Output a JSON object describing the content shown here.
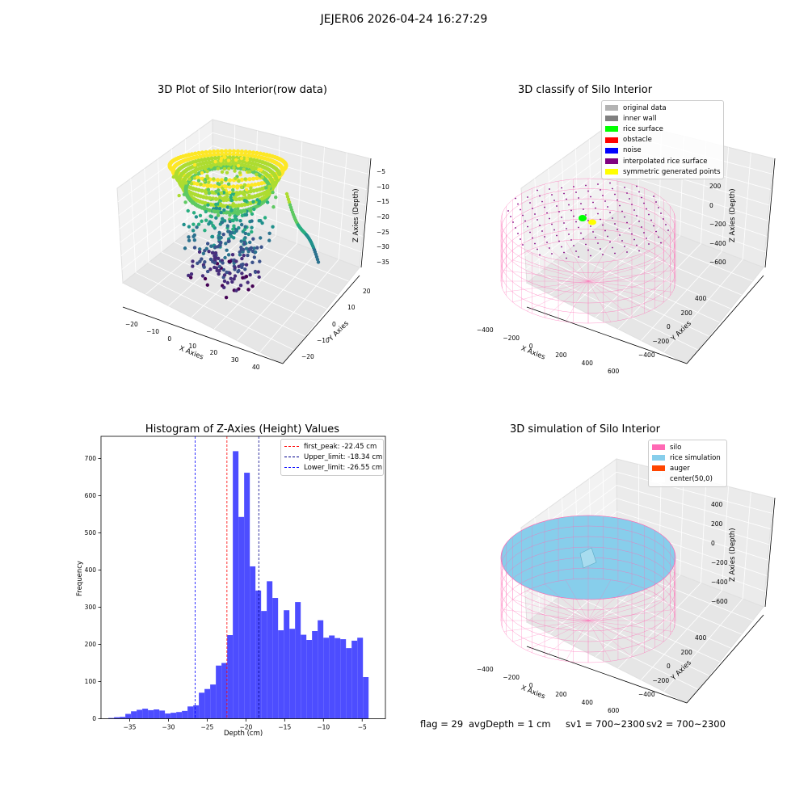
{
  "suptitle": "JEJER06 2026-04-24 16:27:29",
  "chart_data": [
    {
      "type": "scatter",
      "title": "3D Plot of Silo Interior(row data)",
      "xlabel": "X Axies",
      "ylabel": "Y Axies",
      "zlabel": "Z Axies (Depth)",
      "x_ticks": [
        "−20",
        "−10",
        "0",
        "10",
        "20",
        "30",
        "40"
      ],
      "y_ticks": [
        "−20",
        "−10",
        "0",
        "10",
        "20"
      ],
      "z_ticks": [
        "−5",
        "−10",
        "−15",
        "−20",
        "−25",
        "−30",
        "−35"
      ],
      "colormap": "viridis"
    },
    {
      "type": "scatter",
      "title": "3D classify of Silo Interior",
      "xlabel": "X Axies",
      "ylabel": "Y Axies",
      "zlabel": "Z Axies (Depth)",
      "x_ticks": [
        "−400",
        "−200",
        "0",
        "200",
        "400",
        "600"
      ],
      "y_ticks": [
        "−400",
        "−200",
        "0",
        "200",
        "400"
      ],
      "z_ticks": [
        "200",
        "0",
        "−200",
        "−400",
        "−600"
      ],
      "legend": [
        {
          "label": "original data",
          "color": "#b3b3b3"
        },
        {
          "label": "inner wall",
          "color": "#808080"
        },
        {
          "label": "rice surface",
          "color": "#00ff00"
        },
        {
          "label": "obstacle",
          "color": "#ff0000"
        },
        {
          "label": "noise",
          "color": "#0000ff"
        },
        {
          "label": "interpolated rice surface",
          "color": "#800080"
        },
        {
          "label": "symmetric generated points",
          "color": "#ffff00"
        }
      ]
    },
    {
      "type": "bar",
      "title": "Histogram of Z-Axies (Height) Values",
      "xlabel": "Depth (cm)",
      "ylabel": "Frequency",
      "xlim": [
        -38.7,
        -2.0
      ],
      "ylim": [
        0,
        760
      ],
      "x_ticks": [
        -35,
        -30,
        -25,
        -20,
        -15,
        -10,
        -5
      ],
      "y_ticks": [
        0,
        100,
        200,
        300,
        400,
        500,
        600,
        700
      ],
      "bin_width": 0.73,
      "bin_starts": [
        -37.75,
        -37.02,
        -36.29,
        -35.56,
        -34.83,
        -34.1,
        -33.37,
        -32.64,
        -31.91,
        -31.18,
        -30.45,
        -29.72,
        -28.99,
        -28.26,
        -27.53,
        -26.8,
        -26.07,
        -25.34,
        -24.61,
        -23.88,
        -23.15,
        -22.42,
        -21.69,
        -20.96,
        -20.23,
        -19.5,
        -18.77,
        -18.04,
        -17.31,
        -16.58,
        -15.85,
        -15.12,
        -14.39,
        -13.66,
        -12.93,
        -12.2,
        -11.47,
        -10.74,
        -10.01,
        -9.28,
        -8.55,
        -7.82,
        -7.09,
        -6.36,
        -5.63,
        -4.9,
        -4.17
      ],
      "values": [
        2,
        4,
        5,
        13,
        20,
        24,
        27,
        23,
        25,
        22,
        14,
        16,
        18,
        21,
        33,
        36,
        70,
        80,
        92,
        143,
        150,
        225,
        720,
        543,
        662,
        410,
        345,
        290,
        370,
        325,
        238,
        292,
        242,
        314,
        226,
        212,
        236,
        265,
        218,
        224,
        217,
        214,
        190,
        210,
        218,
        112,
        0
      ],
      "color": "#4d4dff",
      "vlines": [
        {
          "label": "first_peak: -22.45 cm",
          "value": -22.45,
          "color": "#ff0000"
        },
        {
          "label": "Upper_limit: -18.34 cm",
          "value": -18.34,
          "color": "#00008b"
        },
        {
          "label": "Lower_limit: -26.55 cm",
          "value": -26.55,
          "color": "#0000ff"
        }
      ]
    },
    {
      "type": "scatter",
      "title": "3D simulation of Silo Interior",
      "xlabel": "X Axies",
      "ylabel": "Y Axies",
      "zlabel": "Z Axies (Depth)",
      "x_ticks": [
        "−400",
        "−200",
        "0",
        "200",
        "400",
        "600"
      ],
      "y_ticks": [
        "−400",
        "−200",
        "0",
        "200",
        "400"
      ],
      "z_ticks": [
        "400",
        "200",
        "0",
        "−200",
        "−400",
        "−600"
      ],
      "legend": [
        {
          "label": "silo",
          "color": "#ff69b4"
        },
        {
          "label": "rice simulation",
          "color": "#87ceeb"
        },
        {
          "label": "auger",
          "color": "#ff4500"
        },
        {
          "label": "center(50,0)",
          "color": "#ffffff"
        }
      ]
    }
  ],
  "status": {
    "flag": "flag = 29",
    "avg_depth": "avgDepth = 1 cm",
    "sv1": "sv1 = 700~2300",
    "sv2": "sv2 = 700~2300"
  }
}
